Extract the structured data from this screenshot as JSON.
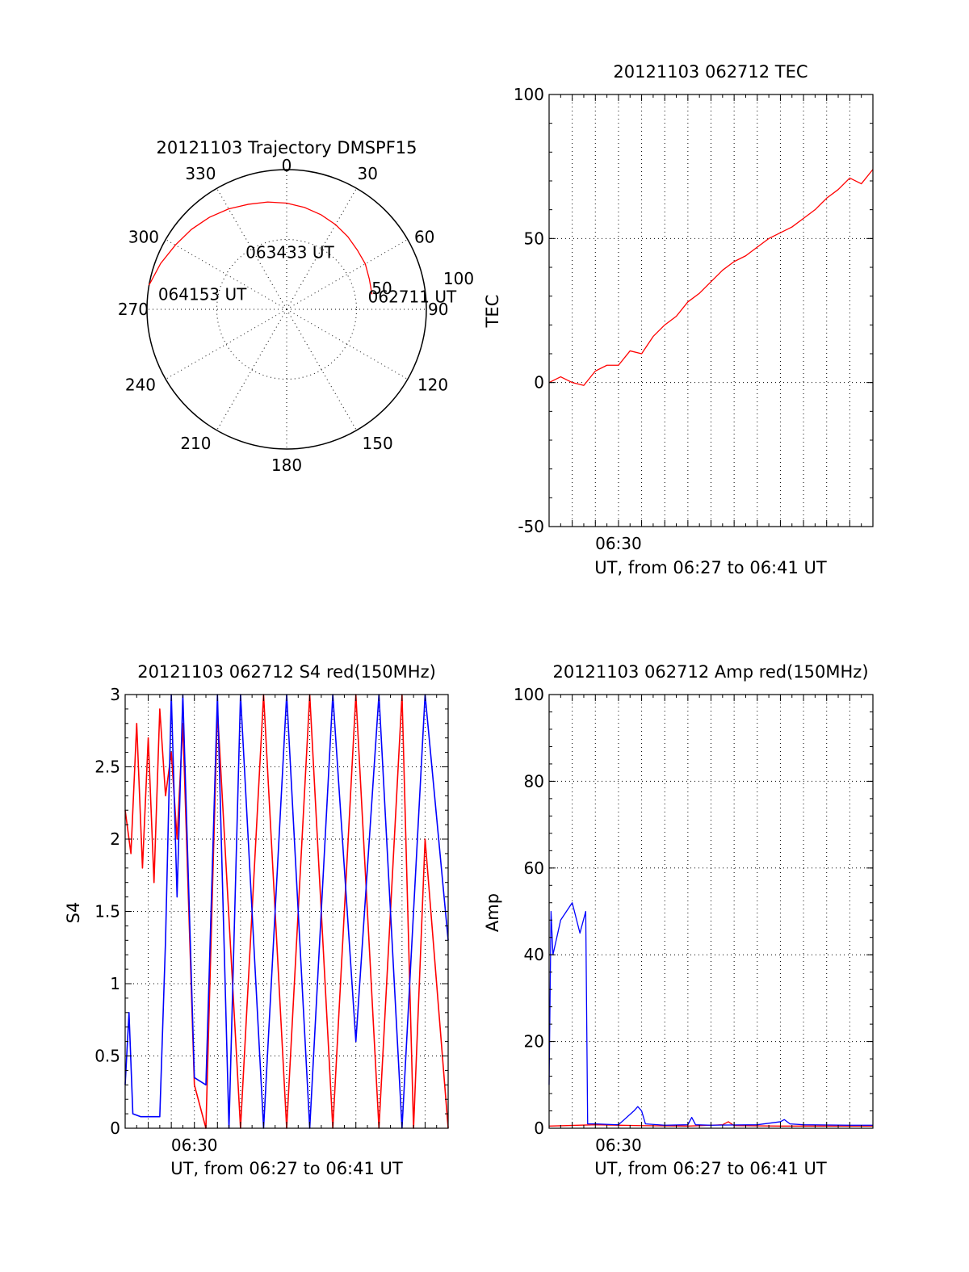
{
  "chart_data": [
    {
      "type": "polar",
      "title": "20121103 Trajectory DMSPF15",
      "angle_labels": [
        "0",
        "30",
        "60",
        "90",
        "120",
        "150",
        "180",
        "210",
        "240",
        "270",
        "300",
        "330"
      ],
      "radial_labels": [
        "50",
        "100"
      ],
      "rlim": [
        0,
        100
      ],
      "grid": true,
      "series": [
        {
          "color": "#ff0000",
          "azimuth": [
            80,
            70,
            60,
            50,
            40,
            30,
            20,
            10,
            0,
            -10,
            -20,
            -30,
            -40,
            -50,
            -60,
            -70,
            -80
          ],
          "radius": [
            62,
            63,
            65,
            66,
            68,
            70,
            72,
            74,
            76,
            78,
            80,
            83,
            86,
            89,
            92,
            96,
            100
          ]
        }
      ],
      "annotations": [
        {
          "text": "062711 UT",
          "azimuth": 80,
          "radius": 62
        },
        {
          "text": "063433 UT",
          "azimuth": -32,
          "radius": 50
        },
        {
          "text": "064153 UT",
          "azimuth": -82,
          "radius": 90
        }
      ]
    },
    {
      "type": "line",
      "title": "20121103 062712 TEC",
      "xlabel": "UT, from 06:27 to 06:41 UT",
      "ylabel": "TEC",
      "xlim": [
        "06:27",
        "06:41"
      ],
      "ylim": [
        -50,
        100
      ],
      "yticks": [
        "-50",
        "0",
        "50",
        "100"
      ],
      "xticks": [
        {
          "time": "06:30",
          "label": "06:30"
        }
      ],
      "grid": true,
      "series": [
        {
          "color": "#ff0000",
          "x": [
            "06:27",
            "06:27:30",
            "06:28",
            "06:28:30",
            "06:29",
            "06:29:30",
            "06:30",
            "06:30:30",
            "06:31",
            "06:31:30",
            "06:32",
            "06:32:30",
            "06:33",
            "06:33:30",
            "06:34",
            "06:34:30",
            "06:35",
            "06:35:30",
            "06:36",
            "06:36:30",
            "06:37",
            "06:37:30",
            "06:38",
            "06:38:30",
            "06:39",
            "06:39:30",
            "06:40",
            "06:40:30",
            "06:41"
          ],
          "y": [
            0,
            2,
            0,
            -1,
            4,
            6,
            6,
            11,
            10,
            16,
            20,
            23,
            28,
            31,
            35,
            39,
            42,
            44,
            47,
            50,
            52,
            54,
            57,
            60,
            64,
            67,
            71,
            69,
            74
          ]
        }
      ]
    },
    {
      "type": "line",
      "title": "20121103 062712 S4 red(150MHz)",
      "xlabel": "UT, from 06:27 to 06:41 UT",
      "ylabel": "S4",
      "xlim": [
        "06:27",
        "06:41"
      ],
      "ylim": [
        0,
        3
      ],
      "yticks": [
        "0",
        "0.5",
        "1",
        "1.5",
        "2",
        "2.5",
        "3"
      ],
      "xticks": [
        {
          "time": "06:30",
          "label": "06:30"
        }
      ],
      "grid": true,
      "series": [
        {
          "color": "#ff0000",
          "x": [
            "06:27",
            "06:27:15",
            "06:27:30",
            "06:27:45",
            "06:28",
            "06:28:15",
            "06:28:30",
            "06:28:45",
            "06:29",
            "06:29:15",
            "06:29:30",
            "06:30",
            "06:30:30",
            "06:31",
            "06:32",
            "06:33",
            "06:34",
            "06:35",
            "06:36",
            "06:37",
            "06:38",
            "06:39",
            "06:39:30",
            "06:40",
            "06:41"
          ],
          "y": [
            2.2,
            1.9,
            2.8,
            1.8,
            2.7,
            1.7,
            2.9,
            2.3,
            2.6,
            2.0,
            2.8,
            0.3,
            0,
            2.9,
            0,
            3,
            0,
            3,
            0,
            3,
            0,
            3,
            0,
            2.0,
            0
          ]
        },
        {
          "color": "#0000ff",
          "x": [
            "06:27",
            "06:27:10",
            "06:27:20",
            "06:27:40",
            "06:28",
            "06:28:30",
            "06:28:45",
            "06:29",
            "06:29:15",
            "06:29:30",
            "06:30",
            "06:30:30",
            "06:31",
            "06:31:30",
            "06:32",
            "06:33",
            "06:34",
            "06:35",
            "06:36",
            "06:37",
            "06:38",
            "06:39",
            "06:40",
            "06:41"
          ],
          "y": [
            0.3,
            0.8,
            0.1,
            0.08,
            0.08,
            0.08,
            1.3,
            3,
            1.6,
            3,
            0.35,
            0.3,
            3,
            0,
            3,
            0,
            3,
            0,
            3,
            0.6,
            3,
            0,
            3,
            1.3
          ]
        }
      ]
    },
    {
      "type": "line",
      "title": "20121103 062712 Amp red(150MHz)",
      "xlabel": "UT, from 06:27 to 06:41 UT",
      "ylabel": "Amp",
      "xlim": [
        "06:27",
        "06:41"
      ],
      "ylim": [
        0,
        100
      ],
      "yticks": [
        "0",
        "20",
        "40",
        "60",
        "80",
        "100"
      ],
      "xticks": [
        {
          "time": "06:30",
          "label": "06:30"
        }
      ],
      "grid": true,
      "series": [
        {
          "color": "#ff0000",
          "x": [
            "06:27",
            "06:29",
            "06:31",
            "06:33",
            "06:34:30",
            "06:34:45",
            "06:35",
            "06:37",
            "06:39",
            "06:41"
          ],
          "y": [
            0.5,
            0.8,
            0.6,
            0.5,
            0.8,
            1.5,
            0.6,
            0.5,
            0.5,
            0.5
          ]
        },
        {
          "color": "#0000ff",
          "x": [
            "06:27",
            "06:27:05",
            "06:27:10",
            "06:27:30",
            "06:28",
            "06:28:20",
            "06:28:35",
            "06:28:40",
            "06:29",
            "06:30",
            "06:30:40",
            "06:30:50",
            "06:31",
            "06:31:10",
            "06:32",
            "06:33",
            "06:33:10",
            "06:33:20",
            "06:34",
            "06:36",
            "06:37",
            "06:37:10",
            "06:37:25",
            "06:38",
            "06:40",
            "06:41"
          ],
          "y": [
            10,
            50,
            40,
            48,
            52,
            45,
            50,
            1,
            1,
            0.8,
            4,
            5,
            4,
            1,
            0.7,
            0.8,
            2.5,
            0.8,
            0.7,
            0.8,
            1.5,
            2,
            1,
            0.8,
            0.7,
            0.7
          ]
        }
      ]
    }
  ]
}
